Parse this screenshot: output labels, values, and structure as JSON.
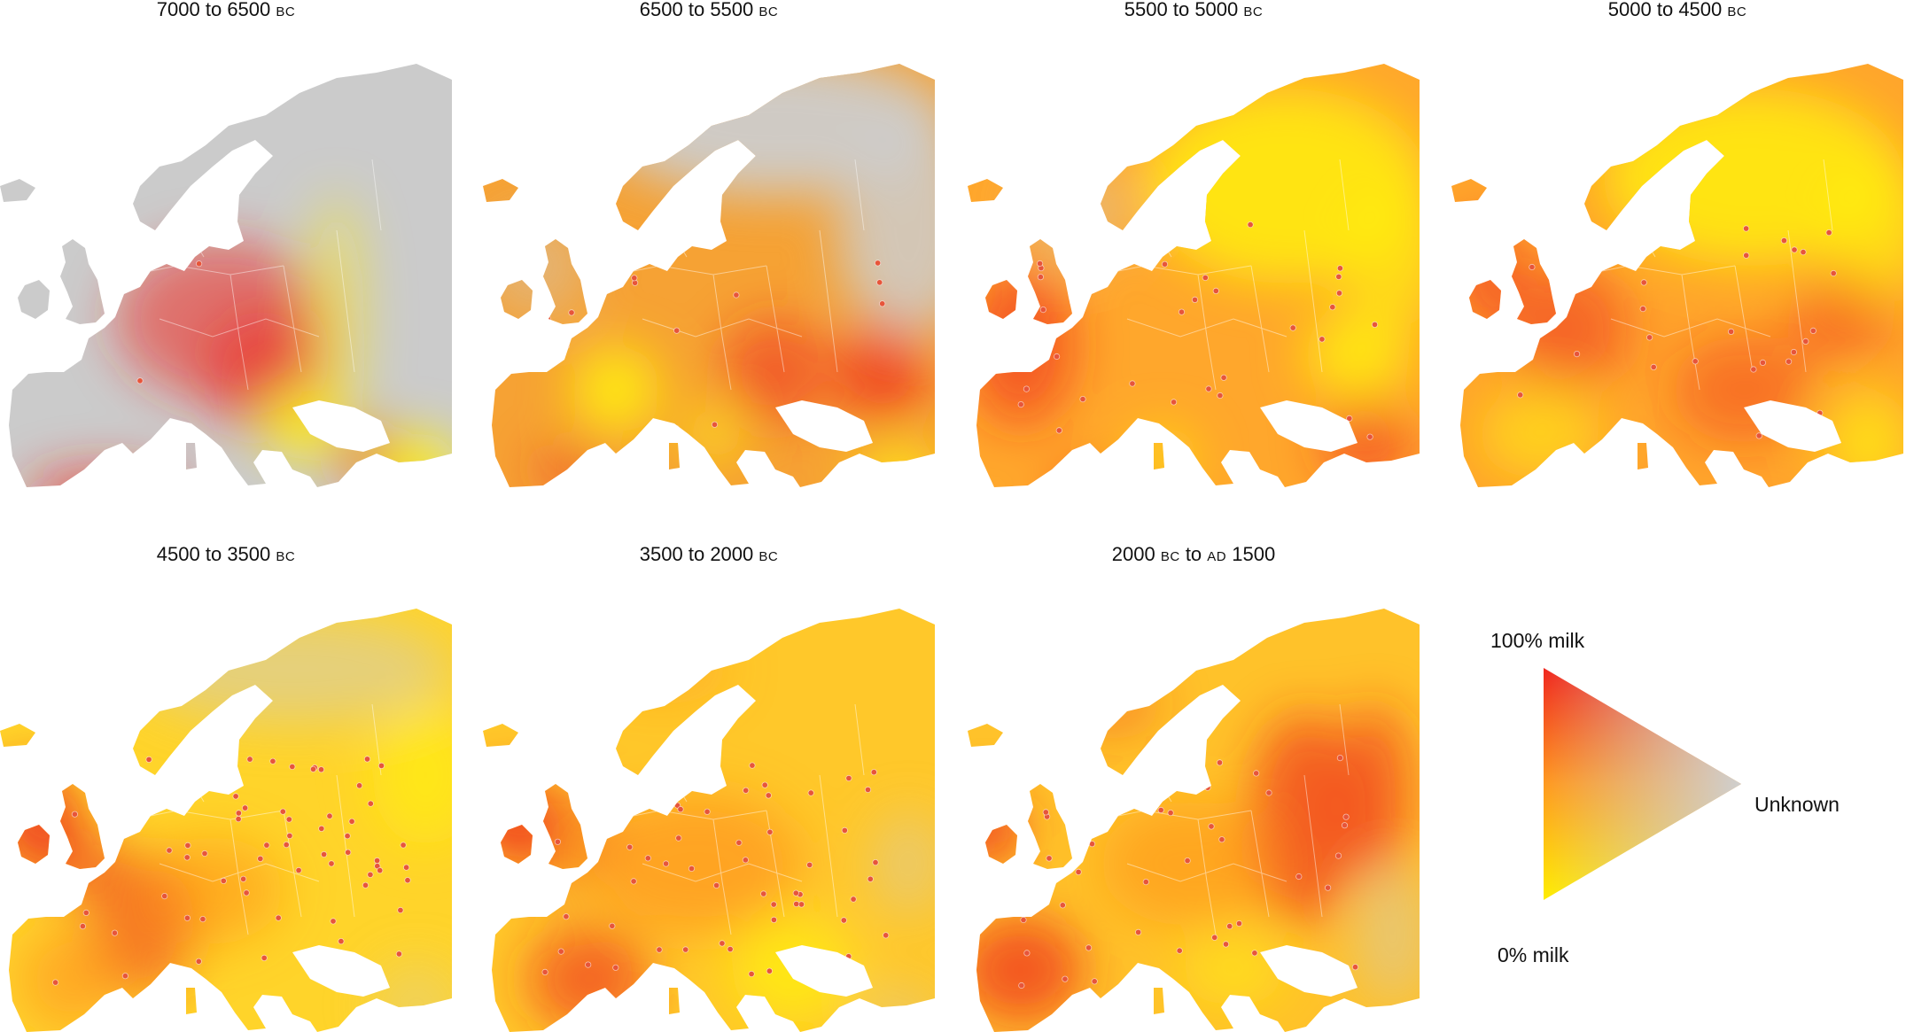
{
  "panels": [
    {
      "id": "p1",
      "period": {
        "from": "7000",
        "from_era": "",
        "to": "6500",
        "to_era": "BC"
      }
    },
    {
      "id": "p2",
      "period": {
        "from": "6500",
        "from_era": "",
        "to": "5500",
        "to_era": "BC"
      }
    },
    {
      "id": "p3",
      "period": {
        "from": "5500",
        "from_era": "",
        "to": "5000",
        "to_era": "BC"
      }
    },
    {
      "id": "p4",
      "period": {
        "from": "5000",
        "from_era": "",
        "to": "4500",
        "to_era": "BC"
      }
    },
    {
      "id": "p5",
      "period": {
        "from": "4500",
        "from_era": "",
        "to": "3500",
        "to_era": "BC"
      }
    },
    {
      "id": "p6",
      "period": {
        "from": "3500",
        "from_era": "",
        "to": "2000",
        "to_era": "BC"
      }
    },
    {
      "id": "p7",
      "period": {
        "from": "2000",
        "from_era": "BC",
        "to": "1500",
        "to_era": "AD",
        "to_era_before": true
      }
    }
  ],
  "connector": "to",
  "legend": {
    "top_label": "100% milk",
    "bottom_label": "0% milk",
    "right_label": "Unknown",
    "colors": {
      "milk_100": "#f0261e",
      "milk_0": "#ffee00",
      "unknown": "#cfcfcf",
      "mid": "#ff9a20"
    }
  }
}
